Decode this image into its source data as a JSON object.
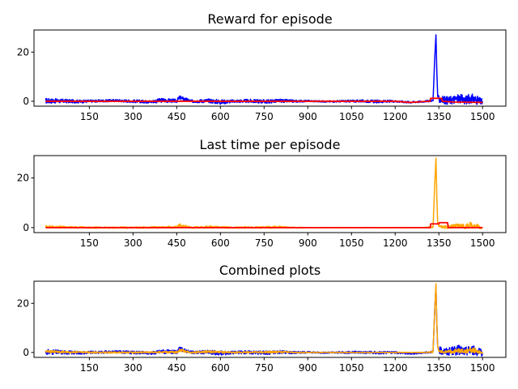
{
  "chart_data": [
    {
      "type": "line",
      "title": "Reward for episode",
      "xlabel": "",
      "ylabel": "",
      "xlim": [
        -40,
        1580
      ],
      "ylim": [
        -2,
        29
      ],
      "xticks": [
        150,
        300,
        450,
        600,
        750,
        900,
        1050,
        1200,
        1350,
        1500
      ],
      "xtick_labels": [
        "150",
        "300",
        "450",
        "600",
        "750",
        "900",
        "1050",
        "1200",
        "1350",
        "1500"
      ],
      "yticks": [
        0,
        20
      ],
      "ytick_labels": [
        "0",
        "20"
      ],
      "grid": false,
      "series": [
        {
          "color": "#0000ff",
          "style": "noisy",
          "x": [
            0,
            60,
            120,
            180,
            240,
            300,
            360,
            400,
            450,
            460,
            500,
            560,
            600,
            640,
            700,
            760,
            800,
            860,
            900,
            960,
            1020,
            1080,
            1140,
            1200,
            1250,
            1300,
            1330,
            1336,
            1340,
            1343,
            1346,
            1352,
            1380,
            1420,
            1440,
            1460,
            1480,
            1500
          ],
          "y": [
            0.2,
            0.1,
            -0.1,
            0.1,
            0.3,
            0.0,
            -0.2,
            0.4,
            0.1,
            1.5,
            0.0,
            0.2,
            -0.3,
            0.0,
            0.1,
            -0.1,
            0.2,
            0.0,
            0.1,
            -0.1,
            0.0,
            0.1,
            -0.1,
            0.0,
            -0.4,
            -0.1,
            0.3,
            18.0,
            27.0,
            12.0,
            2.0,
            0.8,
            0.3,
            1.0,
            0.4,
            1.2,
            0.5,
            -0.4
          ],
          "spread": [
            1.1,
            0.8,
            0.6,
            0.5,
            0.5,
            0.6,
            0.6,
            0.9,
            0.7,
            0.8,
            0.6,
            0.8,
            1.0,
            0.6,
            0.7,
            0.8,
            0.7,
            0.5,
            0.3,
            0.3,
            0.4,
            0.5,
            0.6,
            0.4,
            0.4,
            0.3,
            0.4,
            0.2,
            0.2,
            0.2,
            0.4,
            1.5,
            1.6,
            2.0,
            1.8,
            2.0,
            1.8,
            1.3
          ]
        },
        {
          "color": "#ff0000",
          "style": "smooth",
          "x": [
            0,
            150,
            300,
            450,
            600,
            750,
            900,
            1050,
            1200,
            1250,
            1300,
            1320,
            1322,
            1360,
            1362,
            1400,
            1450,
            1500
          ],
          "y": [
            0.0,
            0.0,
            0.0,
            0.0,
            0.0,
            0.0,
            0.0,
            0.0,
            0.0,
            -0.5,
            -0.1,
            0.0,
            1.2,
            1.2,
            0.0,
            -0.3,
            -0.4,
            -0.5
          ]
        }
      ]
    },
    {
      "type": "line",
      "title": "Last time per episode",
      "xlabel": "",
      "ylabel": "",
      "xlim": [
        -40,
        1580
      ],
      "ylim": [
        -2,
        29
      ],
      "xticks": [
        150,
        300,
        450,
        600,
        750,
        900,
        1050,
        1200,
        1350,
        1500
      ],
      "xtick_labels": [
        "150",
        "300",
        "450",
        "600",
        "750",
        "900",
        "1050",
        "1200",
        "1350",
        "1500"
      ],
      "yticks": [
        0,
        20
      ],
      "ytick_labels": [
        "0",
        "20"
      ],
      "grid": false,
      "series": [
        {
          "color": "#ffa500",
          "style": "noisy",
          "x": [
            0,
            60,
            120,
            180,
            240,
            300,
            360,
            420,
            450,
            460,
            500,
            560,
            600,
            640,
            700,
            760,
            800,
            860,
            900,
            960,
            1020,
            1080,
            1140,
            1200,
            1260,
            1300,
            1330,
            1336,
            1340,
            1343,
            1346,
            1352,
            1380,
            1420,
            1440,
            1460,
            1480,
            1500
          ],
          "y": [
            0.4,
            0.2,
            0.1,
            0.0,
            0.0,
            0.0,
            0.1,
            0.2,
            0.1,
            1.0,
            0.0,
            0.3,
            0.1,
            0.0,
            0.1,
            0.1,
            0.2,
            0.0,
            0.0,
            0.0,
            0.0,
            0.0,
            0.0,
            0.0,
            0.0,
            0.0,
            0.2,
            18.0,
            28.0,
            12.0,
            2.0,
            0.3,
            0.2,
            0.8,
            0.3,
            1.2,
            0.5,
            0.1
          ],
          "spread": [
            0.5,
            0.4,
            0.3,
            0.3,
            0.3,
            0.3,
            0.3,
            0.4,
            0.4,
            0.6,
            0.3,
            0.5,
            0.4,
            0.3,
            0.3,
            0.4,
            0.4,
            0.2,
            0.1,
            0.1,
            0.1,
            0.1,
            0.1,
            0.1,
            0.1,
            0.1,
            0.3,
            0.2,
            0.2,
            0.2,
            0.4,
            0.6,
            0.6,
            1.0,
            0.8,
            1.2,
            1.0,
            0.6
          ]
        },
        {
          "color": "#ff0000",
          "style": "smooth",
          "x": [
            0,
            150,
            300,
            450,
            600,
            750,
            900,
            1050,
            1200,
            1300,
            1320,
            1322,
            1350,
            1352,
            1380,
            1382,
            1450,
            1500
          ],
          "y": [
            0.0,
            0.0,
            0.0,
            0.0,
            0.0,
            0.0,
            0.0,
            0.0,
            0.0,
            0.0,
            0.0,
            1.5,
            1.5,
            2.0,
            2.0,
            0.0,
            0.0,
            0.0
          ]
        }
      ]
    },
    {
      "type": "line",
      "title": "Combined plots",
      "xlabel": "",
      "ylabel": "",
      "xlim": [
        -40,
        1580
      ],
      "ylim": [
        -2,
        29
      ],
      "xticks": [
        150,
        300,
        450,
        600,
        750,
        900,
        1050,
        1200,
        1350,
        1500
      ],
      "xtick_labels": [
        "150",
        "300",
        "450",
        "600",
        "750",
        "900",
        "1050",
        "1200",
        "1350",
        "1500"
      ],
      "yticks": [
        0,
        20
      ],
      "ytick_labels": [
        "0",
        "20"
      ],
      "grid": false,
      "series": [
        {
          "color": "#0000ff",
          "style": "noisy",
          "x": [
            0,
            60,
            120,
            180,
            240,
            300,
            360,
            400,
            450,
            460,
            500,
            560,
            600,
            640,
            700,
            760,
            800,
            860,
            900,
            960,
            1020,
            1080,
            1140,
            1200,
            1250,
            1300,
            1330,
            1336,
            1340,
            1343,
            1346,
            1352,
            1380,
            1420,
            1440,
            1460,
            1480,
            1500
          ],
          "y": [
            0.2,
            0.1,
            -0.1,
            0.1,
            0.3,
            0.0,
            -0.2,
            0.4,
            0.1,
            1.5,
            0.0,
            0.2,
            -0.3,
            0.0,
            0.1,
            -0.1,
            0.2,
            0.0,
            0.1,
            -0.1,
            0.0,
            0.1,
            -0.1,
            0.0,
            -0.4,
            -0.1,
            0.3,
            18.0,
            27.0,
            12.0,
            2.0,
            0.8,
            0.3,
            1.0,
            0.4,
            1.2,
            0.5,
            -0.4
          ],
          "spread": [
            1.1,
            0.8,
            0.6,
            0.5,
            0.5,
            0.6,
            0.6,
            0.9,
            0.7,
            0.8,
            0.6,
            0.8,
            1.0,
            0.6,
            0.7,
            0.8,
            0.7,
            0.5,
            0.3,
            0.3,
            0.4,
            0.5,
            0.6,
            0.4,
            0.4,
            0.3,
            0.4,
            0.2,
            0.2,
            0.2,
            0.4,
            1.5,
            1.6,
            2.0,
            1.8,
            2.0,
            1.8,
            1.3
          ]
        },
        {
          "color": "#ffa500",
          "style": "noisy",
          "x": [
            0,
            60,
            120,
            180,
            240,
            300,
            360,
            420,
            450,
            460,
            500,
            560,
            600,
            640,
            700,
            760,
            800,
            860,
            900,
            960,
            1020,
            1080,
            1140,
            1200,
            1260,
            1300,
            1330,
            1336,
            1340,
            1343,
            1346,
            1352,
            1380,
            1420,
            1440,
            1460,
            1480,
            1500
          ],
          "y": [
            0.4,
            0.2,
            0.1,
            0.0,
            0.0,
            0.0,
            0.1,
            0.2,
            0.1,
            1.0,
            0.0,
            0.3,
            0.1,
            0.0,
            0.1,
            0.1,
            0.2,
            0.0,
            0.0,
            0.0,
            0.0,
            0.0,
            0.0,
            0.0,
            0.0,
            0.0,
            0.2,
            18.0,
            28.0,
            12.0,
            2.0,
            0.3,
            0.2,
            0.8,
            0.3,
            1.2,
            0.5,
            0.1
          ],
          "spread": [
            0.5,
            0.4,
            0.3,
            0.3,
            0.3,
            0.3,
            0.3,
            0.4,
            0.4,
            0.6,
            0.3,
            0.5,
            0.4,
            0.3,
            0.3,
            0.4,
            0.4,
            0.2,
            0.1,
            0.1,
            0.1,
            0.1,
            0.1,
            0.1,
            0.1,
            0.1,
            0.3,
            0.2,
            0.2,
            0.2,
            0.4,
            0.6,
            0.6,
            1.0,
            0.8,
            1.2,
            1.0,
            0.6
          ]
        }
      ]
    }
  ]
}
